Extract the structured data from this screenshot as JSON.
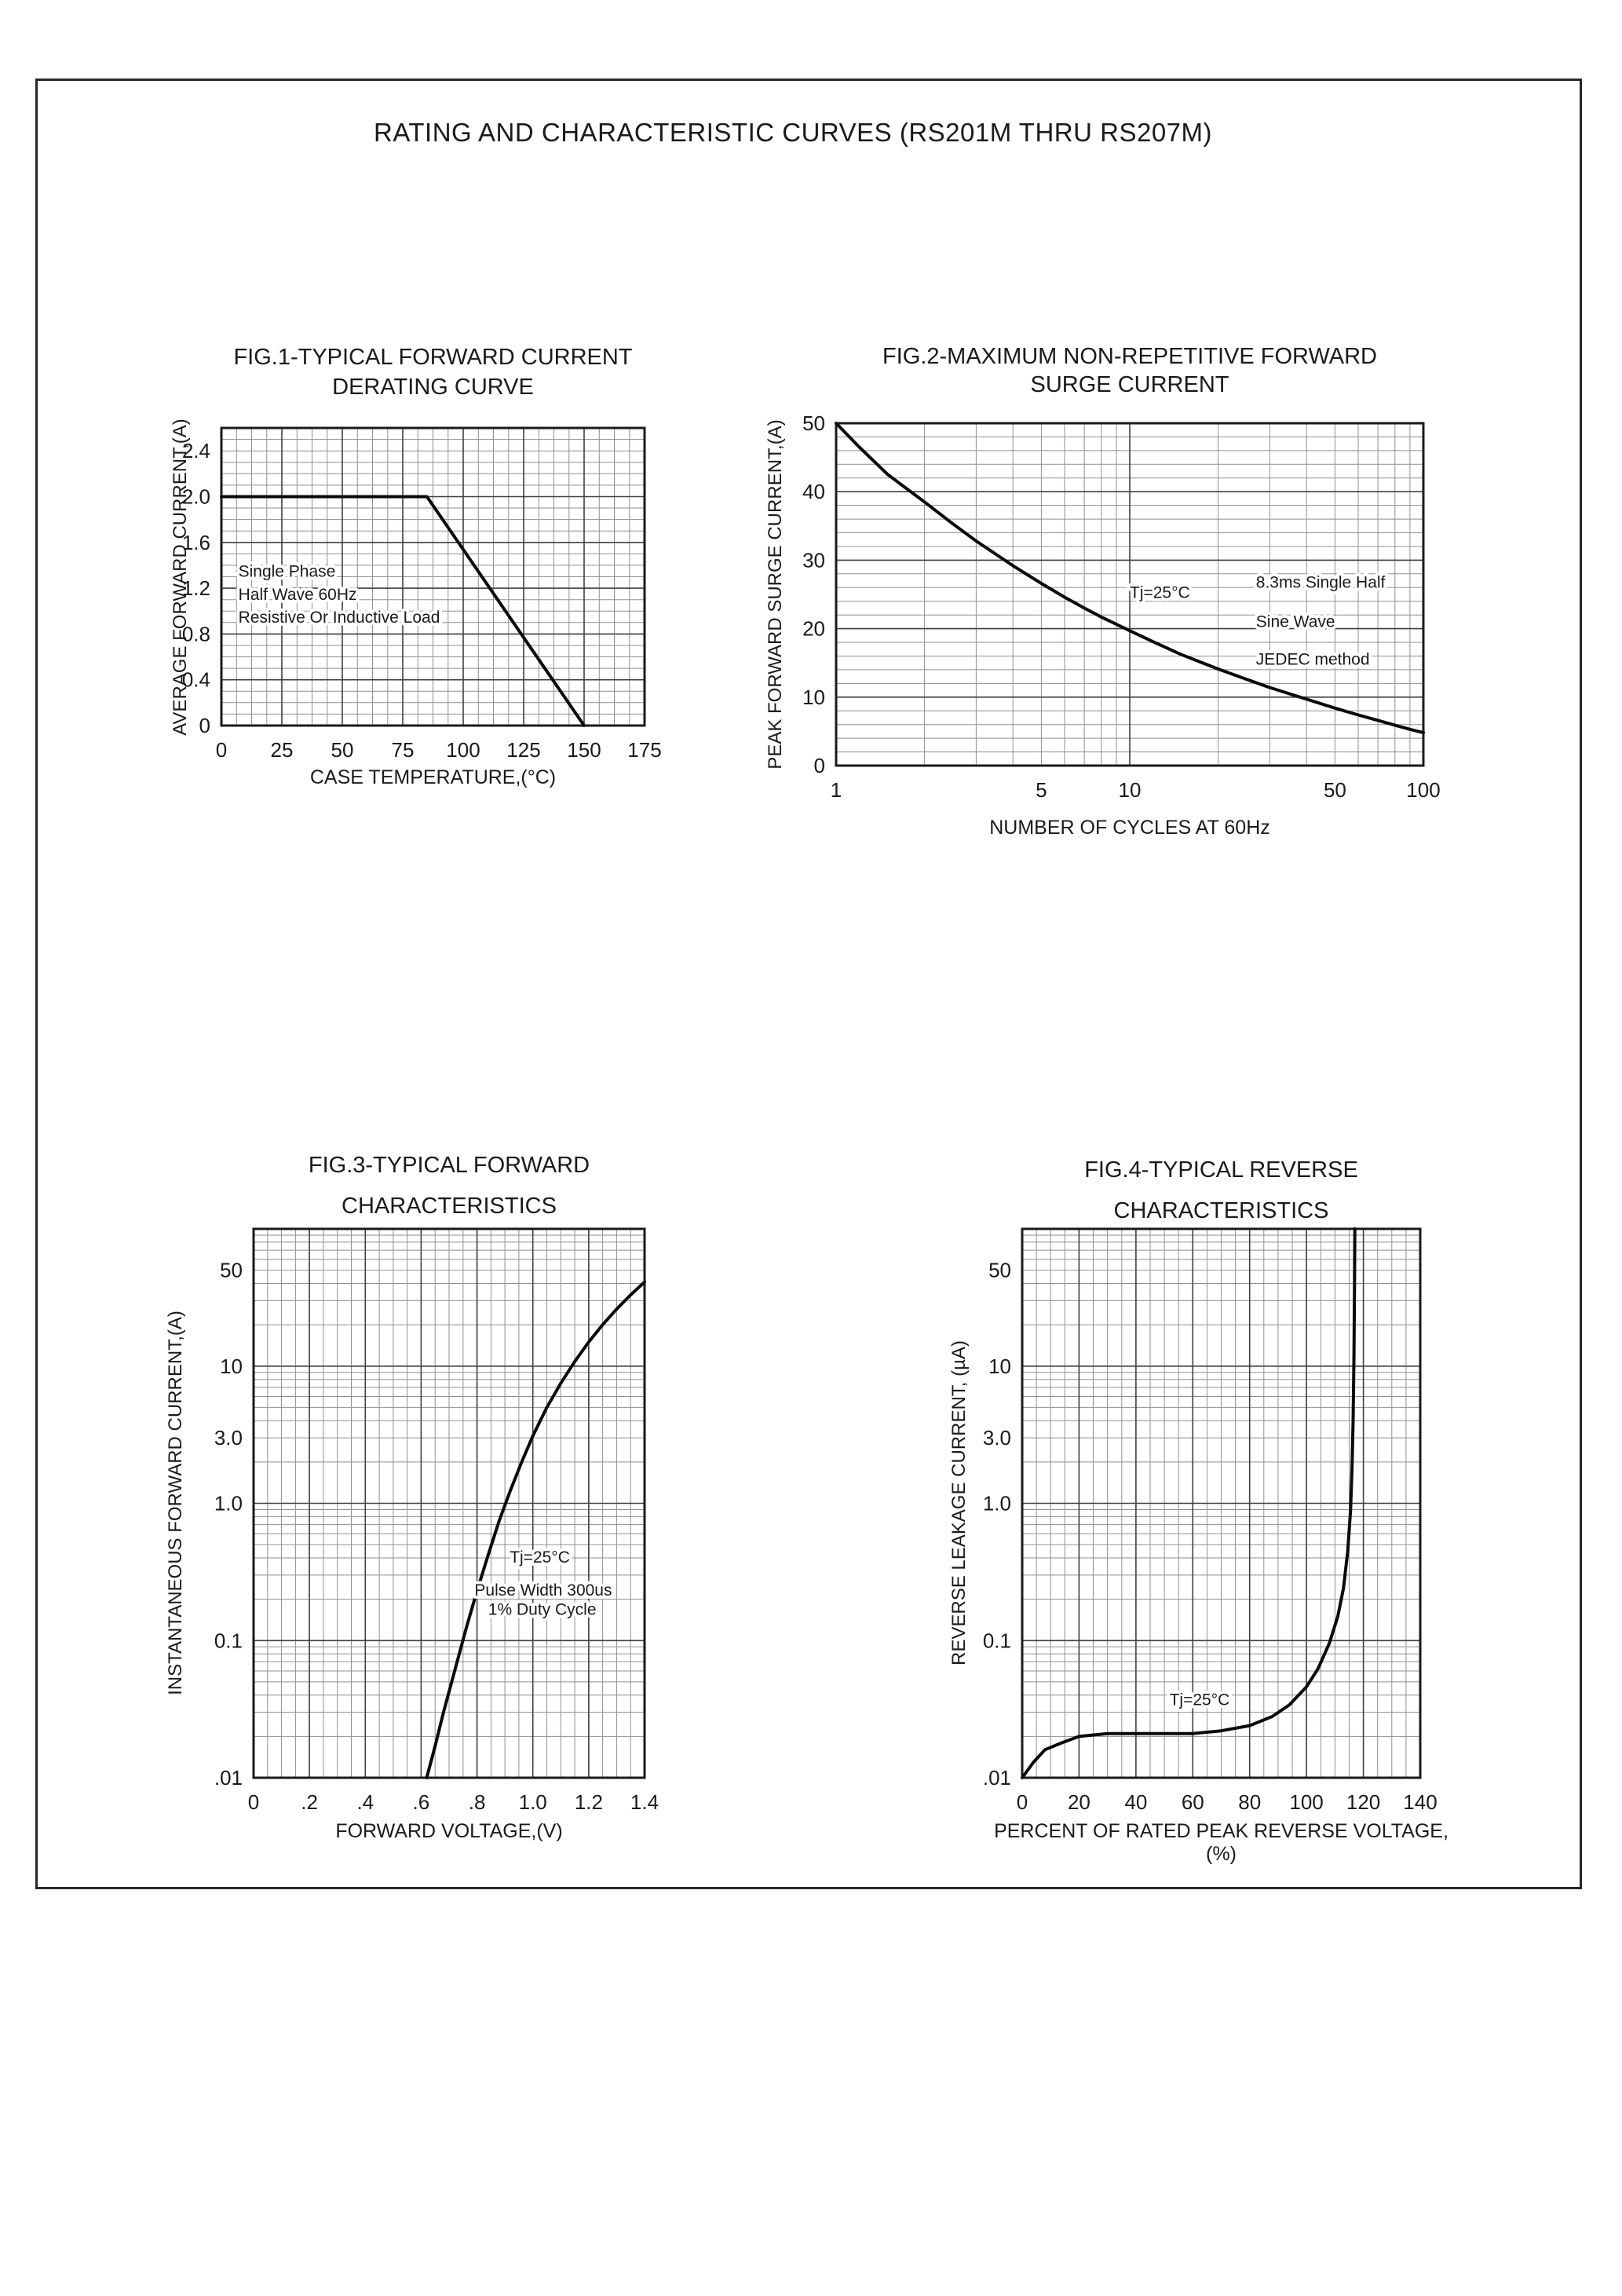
{
  "page": {
    "title": "RATING AND CHARACTERISTIC CURVES (RS201M THRU RS207M)"
  },
  "colors": {
    "ink": "#1a1a1a",
    "grid_minor": "#8f8f8f",
    "grid_major": "#3f3f3f",
    "curve": "#0a0a0a",
    "background": "#ffffff"
  },
  "chart_data": [
    {
      "fig": "fig1",
      "type": "line",
      "title_lines": [
        "FIG.1-TYPICAL FORWARD CURRENT",
        "DERATING CURVE"
      ],
      "xlabel": "CASE TEMPERATURE,(°C)",
      "ylabel": "AVERAGE FORWARD CURRENT,(A)",
      "x_axis": {
        "scale": "linear",
        "min": 0,
        "max": 175,
        "major_step": 25,
        "minor_step": 6.25,
        "tick_labels": [
          {
            "v": 0,
            "t": "0"
          },
          {
            "v": 25,
            "t": "25"
          },
          {
            "v": 50,
            "t": "50"
          },
          {
            "v": 75,
            "t": "75"
          },
          {
            "v": 100,
            "t": "100"
          },
          {
            "v": 125,
            "t": "125"
          },
          {
            "v": 150,
            "t": "150"
          },
          {
            "v": 175,
            "t": "175"
          }
        ]
      },
      "y_axis": {
        "scale": "linear",
        "min": 0,
        "max": 2.6,
        "major_step": 0.4,
        "minor_step": 0.1,
        "tick_labels": [
          {
            "v": 2.4,
            "t": "2.4"
          },
          {
            "v": 2.0,
            "t": "2.0"
          },
          {
            "v": 1.6,
            "t": "1.6"
          },
          {
            "v": 1.2,
            "t": "1.2"
          },
          {
            "v": 0.8,
            "t": "0.8"
          },
          {
            "v": 0.4,
            "t": "0.4"
          },
          {
            "v": 0,
            "t": "0"
          }
        ]
      },
      "series": [
        {
          "name": "derating-curve",
          "points": [
            [
              0,
              2.0
            ],
            [
              85,
              2.0
            ],
            [
              150,
              0
            ]
          ]
        }
      ],
      "annotations": [
        {
          "t": "Single Phase",
          "fx": 0.04,
          "fy": 0.5,
          "anchor": "start"
        },
        {
          "t": "Half Wave 60Hz",
          "fx": 0.04,
          "fy": 0.578,
          "anchor": "start"
        },
        {
          "t": "Resistive Or Inductive Load",
          "fx": 0.04,
          "fy": 0.655,
          "anchor": "start"
        }
      ]
    },
    {
      "fig": "fig2",
      "type": "line",
      "title_lines": [
        "FIG.2-MAXIMUM NON-REPETITIVE FORWARD",
        "SURGE CURRENT"
      ],
      "xlabel": "NUMBER OF CYCLES AT 60Hz",
      "ylabel": "PEAK FORWARD SURGE CURRENT,(A)",
      "x_axis": {
        "scale": "log",
        "min": 1,
        "max": 100,
        "tick_labels": [
          {
            "v": 1,
            "t": "1"
          },
          {
            "v": 5,
            "t": "5"
          },
          {
            "v": 10,
            "t": "10"
          },
          {
            "v": 50,
            "t": "50"
          },
          {
            "v": 100,
            "t": "100"
          }
        ]
      },
      "y_axis": {
        "scale": "linear",
        "min": 0,
        "max": 50,
        "major_step": 10,
        "minor_step": 2,
        "tick_labels": [
          {
            "v": 50,
            "t": "50"
          },
          {
            "v": 40,
            "t": "40"
          },
          {
            "v": 30,
            "t": "30"
          },
          {
            "v": 20,
            "t": "20"
          },
          {
            "v": 10,
            "t": "10"
          },
          {
            "v": 0,
            "t": "0"
          }
        ]
      },
      "series": [
        {
          "name": "surge-current",
          "points": [
            [
              1,
              50
            ],
            [
              1.2,
              46.5
            ],
            [
              1.5,
              42.5
            ],
            [
              2,
              38.5
            ],
            [
              2.5,
              35.3
            ],
            [
              3,
              32.8
            ],
            [
              4,
              29.2
            ],
            [
              5,
              26.6
            ],
            [
              6,
              24.6
            ],
            [
              7,
              23
            ],
            [
              8,
              21.7
            ],
            [
              10,
              19.7
            ],
            [
              12,
              18.1
            ],
            [
              15,
              16.2
            ],
            [
              20,
              14.1
            ],
            [
              25,
              12.6
            ],
            [
              30,
              11.4
            ],
            [
              40,
              9.7
            ],
            [
              50,
              8.4
            ],
            [
              60,
              7.4
            ],
            [
              70,
              6.6
            ],
            [
              80,
              5.9
            ],
            [
              90,
              5.3
            ],
            [
              100,
              4.8
            ]
          ]
        }
      ],
      "annotations": [
        {
          "t": "Tj=25°C",
          "fx": 0.5,
          "fy": 0.51,
          "anchor": "start"
        },
        {
          "t": "8.3ms Single Half",
          "fx": 0.715,
          "fy": 0.48,
          "anchor": "start"
        },
        {
          "t": "Sine Wave",
          "fx": 0.715,
          "fy": 0.595,
          "anchor": "start"
        },
        {
          "t": "JEDEC method",
          "fx": 0.715,
          "fy": 0.705,
          "anchor": "start"
        }
      ]
    },
    {
      "fig": "fig3",
      "type": "line",
      "title_lines": [
        "FIG.3-TYPICAL FORWARD",
        "CHARACTERISTICS"
      ],
      "xlabel": "FORWARD VOLTAGE,(V)",
      "ylabel": "INSTANTANEOUS FORWARD CURRENT,(A)",
      "x_axis": {
        "scale": "linear",
        "min": 0,
        "max": 1.4,
        "major_step": 0.2,
        "minor_step": 0.05,
        "tick_labels": [
          {
            "v": 0,
            "t": "0"
          },
          {
            "v": 0.2,
            "t": ".2"
          },
          {
            "v": 0.4,
            "t": ".4"
          },
          {
            "v": 0.6,
            "t": ".6"
          },
          {
            "v": 0.8,
            "t": ".8"
          },
          {
            "v": 1.0,
            "t": "1.0"
          },
          {
            "v": 1.2,
            "t": "1.2"
          },
          {
            "v": 1.4,
            "t": "1.4"
          }
        ]
      },
      "y_axis": {
        "scale": "log",
        "min": 0.01,
        "max": 100,
        "tick_labels": [
          {
            "v": 50,
            "t": "50"
          },
          {
            "v": 10,
            "t": "10"
          },
          {
            "v": 3,
            "t": "3.0"
          },
          {
            "v": 1,
            "t": "1.0"
          },
          {
            "v": 0.1,
            "t": "0.1"
          },
          {
            "v": 0.01,
            "t": ".01"
          }
        ]
      },
      "series": [
        {
          "name": "forward-characteristics",
          "points": [
            [
              0.62,
              0.01
            ],
            [
              0.65,
              0.017
            ],
            [
              0.68,
              0.03
            ],
            [
              0.72,
              0.06
            ],
            [
              0.76,
              0.12
            ],
            [
              0.8,
              0.23
            ],
            [
              0.84,
              0.42
            ],
            [
              0.88,
              0.75
            ],
            [
              0.92,
              1.25
            ],
            [
              0.96,
              2.0
            ],
            [
              1.0,
              3.1
            ],
            [
              1.05,
              5.0
            ],
            [
              1.1,
              7.5
            ],
            [
              1.15,
              10.8
            ],
            [
              1.2,
              15
            ],
            [
              1.25,
              20
            ],
            [
              1.3,
              26
            ],
            [
              1.35,
              33
            ],
            [
              1.4,
              41
            ]
          ]
        }
      ],
      "annotations": [
        {
          "t": "Tj=25°C",
          "fx": 0.655,
          "fy": 0.608,
          "anchor": "start"
        },
        {
          "t": "Pulse Width 300us",
          "fx": 0.565,
          "fy": 0.668,
          "anchor": "start"
        },
        {
          "t": "1% Duty Cycle",
          "fx": 0.6,
          "fy": 0.703,
          "anchor": "start"
        }
      ]
    },
    {
      "fig": "fig4",
      "type": "line",
      "title_lines": [
        "FIG.4-TYPICAL REVERSE",
        "CHARACTERISTICS"
      ],
      "xlabel": "PERCENT OF RATED PEAK REVERSE VOLTAGE, (%)",
      "ylabel": "REVERSE LEAKAGE CURRENT, (µA)",
      "x_axis": {
        "scale": "linear",
        "min": 0,
        "max": 140,
        "major_step": 20,
        "minor_step": 5,
        "tick_labels": [
          {
            "v": 0,
            "t": "0"
          },
          {
            "v": 20,
            "t": "20"
          },
          {
            "v": 40,
            "t": "40"
          },
          {
            "v": 60,
            "t": "60"
          },
          {
            "v": 80,
            "t": "80"
          },
          {
            "v": 100,
            "t": "100"
          },
          {
            "v": 120,
            "t": "120"
          },
          {
            "v": 140,
            "t": "140"
          }
        ]
      },
      "y_axis": {
        "scale": "log",
        "min": 0.01,
        "max": 100,
        "tick_labels": [
          {
            "v": 50,
            "t": "50"
          },
          {
            "v": 10,
            "t": "10"
          },
          {
            "v": 3,
            "t": "3.0"
          },
          {
            "v": 1,
            "t": "1.0"
          },
          {
            "v": 0.1,
            "t": "0.1"
          },
          {
            "v": 0.01,
            "t": ".01"
          }
        ]
      },
      "series": [
        {
          "name": "reverse-leakage",
          "points": [
            [
              0,
              0.01
            ],
            [
              4,
              0.013
            ],
            [
              8,
              0.016
            ],
            [
              14,
              0.018
            ],
            [
              20,
              0.02
            ],
            [
              30,
              0.021
            ],
            [
              40,
              0.021
            ],
            [
              50,
              0.021
            ],
            [
              60,
              0.021
            ],
            [
              70,
              0.022
            ],
            [
              80,
              0.024
            ],
            [
              88,
              0.028
            ],
            [
              94,
              0.034
            ],
            [
              100,
              0.046
            ],
            [
              104,
              0.062
            ],
            [
              108,
              0.095
            ],
            [
              111,
              0.15
            ],
            [
              113,
              0.24
            ],
            [
              114.5,
              0.45
            ],
            [
              115.5,
              0.9
            ],
            [
              116,
              1.8
            ],
            [
              116.4,
              4.0
            ],
            [
              116.7,
              12
            ],
            [
              116.9,
              40
            ],
            [
              117,
              100
            ]
          ]
        }
      ],
      "annotations": [
        {
          "t": "Tj=25°C",
          "fx": 0.37,
          "fy": 0.868,
          "anchor": "start"
        }
      ]
    }
  ]
}
